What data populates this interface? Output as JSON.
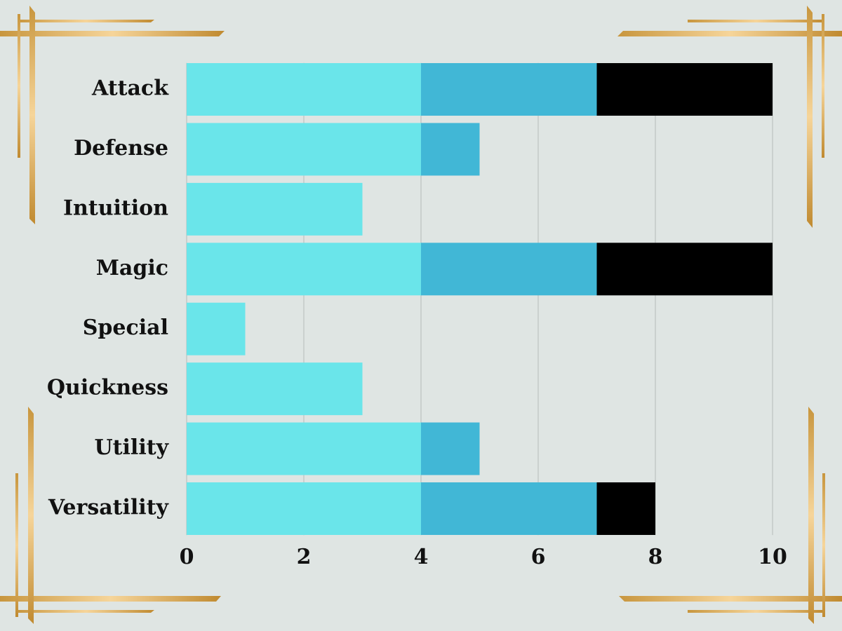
{
  "chart_data": {
    "type": "stacked-bar-horizontal",
    "categories": [
      "Attack",
      "Defense",
      "Intuition",
      "Magic",
      "Special",
      "Quickness",
      "Utility",
      "Versatility"
    ],
    "series": [
      {
        "color": "#6ae5ea",
        "values": [
          4,
          4,
          3,
          4,
          1,
          3,
          4,
          4
        ]
      },
      {
        "color": "#41b7d6",
        "values": [
          3,
          1,
          0,
          3,
          0,
          0,
          1,
          3
        ]
      },
      {
        "color": "#000000",
        "values": [
          3,
          0,
          0,
          3,
          0,
          0,
          0,
          1
        ]
      }
    ],
    "xlim": [
      0,
      10
    ],
    "xticks": [
      0,
      2,
      4,
      6,
      8,
      10
    ],
    "grid": true
  }
}
